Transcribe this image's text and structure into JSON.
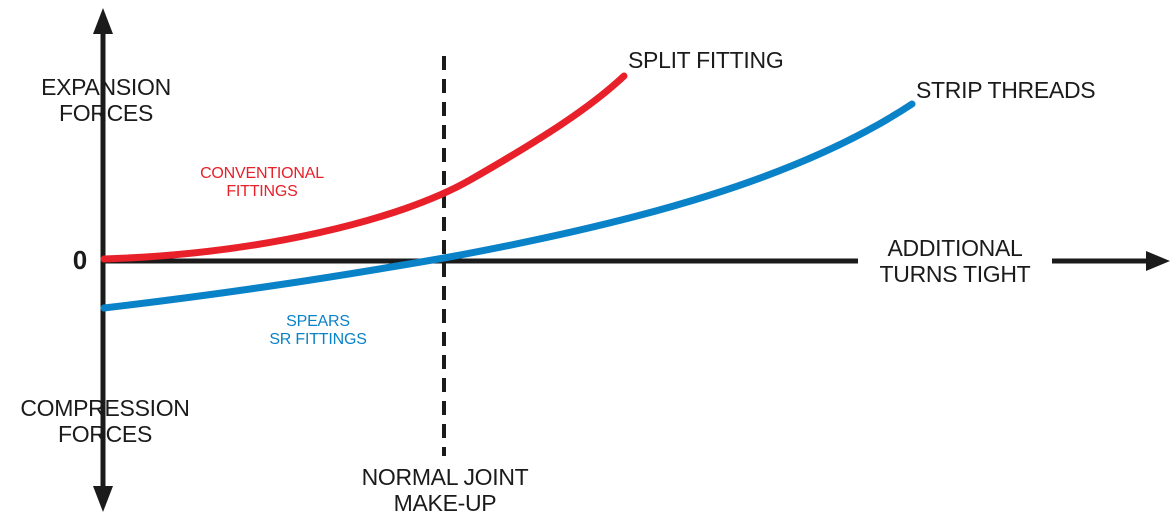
{
  "colors": {
    "axis": "#1b1b1b",
    "conventional_curve": "#e8202a",
    "spears_curve": "#0a82c8",
    "background": "#ffffff"
  },
  "labels": {
    "expansion_forces": [
      "EXPANSION",
      "FORCES"
    ],
    "compression_forces": [
      "COMPRESSION",
      "FORCES"
    ],
    "zero": "0",
    "additional_turns_tight": [
      "ADDITIONAL",
      "TURNS TIGHT"
    ],
    "normal_joint_make_up": [
      "NORMAL JOINT",
      "MAKE-UP"
    ],
    "split_fitting": "SPLIT FITTING",
    "strip_threads": "STRIP THREADS",
    "conventional_fittings": [
      "CONVENTIONAL",
      "FITTINGS"
    ],
    "spears_sr_fittings": [
      "SPEARS",
      "SR FITTINGS"
    ]
  }
}
